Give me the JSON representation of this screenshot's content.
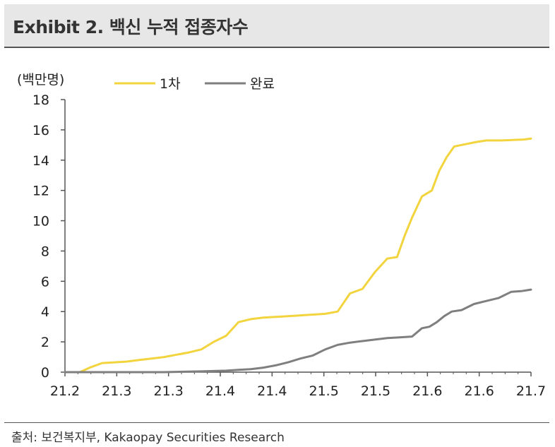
{
  "header": {
    "title": "Exhibit 2. 백신 누적 접종자수"
  },
  "source": "출처: 보건복지부, Kakaopay Securities Research",
  "colors": {
    "first_dose": "#f2d43e",
    "completed": "#7f7f7f",
    "axis": "#555555"
  },
  "chart_data": {
    "type": "line",
    "title": "",
    "ylabel": "(백만명)",
    "xlabel": "",
    "ylim": [
      0,
      18
    ],
    "y_ticks": [
      0,
      2,
      4,
      6,
      8,
      10,
      12,
      14,
      16,
      18
    ],
    "x_tick_labels": [
      "21.2",
      "21.3",
      "21.3",
      "21.4",
      "21.4",
      "21.5",
      "21.5",
      "21.6",
      "21.6",
      "21.7"
    ],
    "legend_position": "top",
    "grid": false,
    "x_range": [
      0,
      18.8
    ],
    "series": [
      {
        "name": "1차",
        "color": "#f2d43e",
        "x": [
          0,
          0.6,
          1.0,
          1.5,
          2.0,
          2.5,
          3.0,
          3.5,
          4.0,
          4.5,
          5.0,
          5.5,
          6.0,
          6.5,
          7.0,
          7.5,
          8.0,
          8.5,
          9.0,
          9.5,
          10.0,
          10.5,
          11.0,
          11.5,
          12.0,
          12.5,
          13.0,
          13.4,
          13.7,
          14.0,
          14.4,
          14.8,
          15.1,
          15.4,
          15.7,
          16.0,
          16.3,
          16.6,
          16.8,
          17.0,
          17.3,
          17.6,
          17.9,
          18.2,
          18.5,
          18.8
        ],
        "y": [
          0,
          0,
          0.3,
          0.6,
          0.65,
          0.7,
          0.8,
          0.9,
          1.0,
          1.15,
          1.3,
          1.5,
          2.0,
          2.4,
          3.3,
          3.5,
          3.6,
          3.65,
          3.7,
          3.75,
          3.8,
          3.85,
          4.0,
          5.2,
          5.5,
          6.6,
          7.5,
          7.6,
          9.0,
          10.2,
          11.6,
          12.0,
          13.3,
          14.2,
          14.9,
          15.0,
          15.1,
          15.2,
          15.25,
          15.3,
          15.3,
          15.3,
          15.32,
          15.34,
          15.36,
          15.42
        ]
      },
      {
        "name": "완료",
        "color": "#7f7f7f",
        "x": [
          0,
          4.0,
          5.5,
          6.5,
          7.0,
          7.5,
          8.0,
          8.5,
          9.0,
          9.5,
          10.0,
          10.5,
          11.0,
          11.5,
          12.0,
          12.5,
          13.0,
          13.5,
          14.0,
          14.4,
          14.7,
          15.0,
          15.3,
          15.6,
          16.0,
          16.5,
          17.0,
          17.5,
          18.0,
          18.4,
          18.8
        ],
        "y": [
          0,
          0,
          0.05,
          0.1,
          0.15,
          0.2,
          0.3,
          0.45,
          0.65,
          0.9,
          1.1,
          1.5,
          1.8,
          1.95,
          2.05,
          2.15,
          2.25,
          2.3,
          2.35,
          2.9,
          3.0,
          3.3,
          3.7,
          4.0,
          4.1,
          4.5,
          4.7,
          4.9,
          5.3,
          5.35,
          5.45
        ]
      }
    ]
  }
}
